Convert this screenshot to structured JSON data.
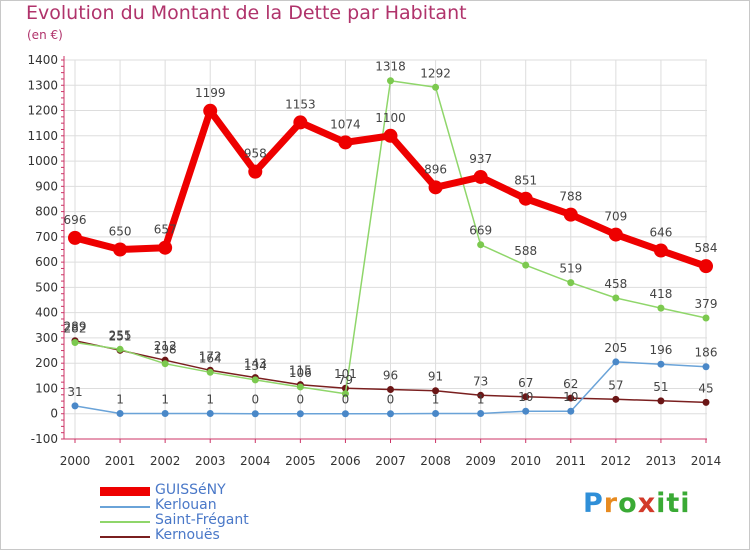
{
  "title": "Evolution du Montant de la Dette par Habitant",
  "subtitle": "(en €)",
  "logo": {
    "p": "P",
    "r": "r",
    "o": "o",
    "x": "x",
    "iti": "iti"
  },
  "colors": {
    "title": "#b0336b",
    "legend_text": "#4a78c8",
    "axis": "#cc3366"
  },
  "chart_data": {
    "type": "line",
    "x": [
      "2000",
      "2001",
      "2002",
      "2003",
      "2004",
      "2005",
      "2006",
      "2007",
      "2008",
      "2009",
      "2010",
      "2011",
      "2012",
      "2013",
      "2014"
    ],
    "ylim": [
      -100,
      1400
    ],
    "yticks": [
      -100,
      0,
      100,
      200,
      300,
      400,
      500,
      600,
      700,
      800,
      900,
      1000,
      1100,
      1200,
      1300,
      1400
    ],
    "grid": true,
    "legend_position": "bottom-left",
    "series": [
      {
        "name": "Kernouës",
        "color": "#7a1f1f",
        "marker": "#6b1616",
        "values": [
          289,
          251,
          212,
          172,
          143,
          115,
          101,
          96,
          91,
          73,
          67,
          62,
          57,
          51,
          45
        ]
      },
      {
        "name": "Saint-Frégant",
        "color": "#8fd66a",
        "marker": "#7cc94f",
        "values": [
          282,
          255,
          198,
          164,
          134,
          106,
          79,
          1318,
          1292,
          669,
          588,
          519,
          458,
          418,
          379
        ]
      },
      {
        "name": "Kerlouan",
        "color": "#6aa3d8",
        "marker": "#4a88c8",
        "values": [
          31,
          1,
          1,
          1,
          0,
          0,
          0,
          0,
          1,
          1,
          10,
          10,
          205,
          196,
          186
        ]
      },
      {
        "name": "GUISSéNY",
        "color": "#ee0000",
        "marker": "#ee0000",
        "values": [
          696,
          650,
          657,
          1199,
          958,
          1153,
          1074,
          1100,
          896,
          937,
          851,
          788,
          709,
          646,
          584
        ]
      }
    ]
  }
}
